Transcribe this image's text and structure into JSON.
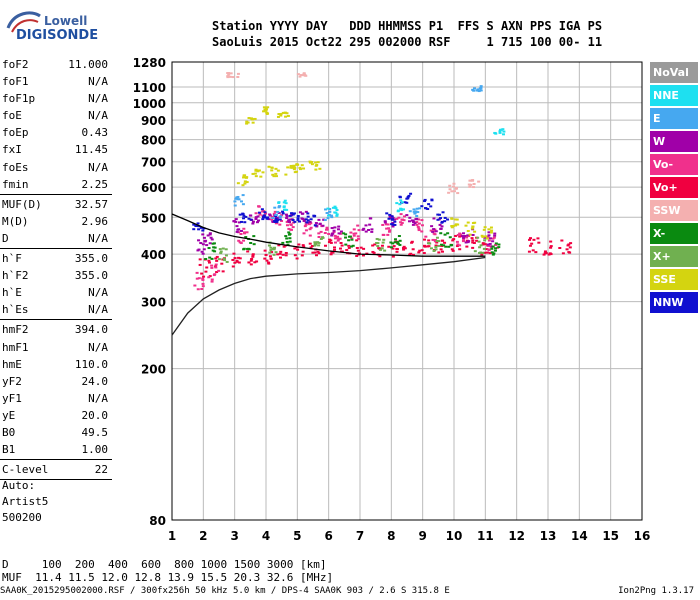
{
  "logo": {
    "line1": "Lowell",
    "line2": "DIGISONDE"
  },
  "header": {
    "line1": "Station YYYY DAY   DDD HHMMSS P1  FFS S AXN PPS IGA PS",
    "line2": "SaoLuis 2015 Oct22 295 002000 RSF     1 715 100 00- 11"
  },
  "params": [
    {
      "name": "foF2",
      "value": "11.000"
    },
    {
      "name": "foF1",
      "value": "N/A"
    },
    {
      "name": "foF1p",
      "value": "N/A"
    },
    {
      "name": "foE",
      "value": "N/A"
    },
    {
      "name": "foEp",
      "value": "0.43"
    },
    {
      "name": "fxI",
      "value": "11.45"
    },
    {
      "name": "foEs",
      "value": "N/A"
    },
    {
      "name": "fmin",
      "value": "2.25"
    },
    {
      "sep": true
    },
    {
      "name": "MUF(D)",
      "value": "32.57"
    },
    {
      "name": "M(D)",
      "value": "2.96"
    },
    {
      "name": "D",
      "value": "N/A"
    },
    {
      "sep": true
    },
    {
      "name": "h`F",
      "value": "355.0"
    },
    {
      "name": "h`F2",
      "value": "355.0"
    },
    {
      "name": "h`E",
      "value": "N/A"
    },
    {
      "name": "h`Es",
      "value": "N/A"
    },
    {
      "sep": true
    },
    {
      "name": "hmF2",
      "value": "394.0"
    },
    {
      "name": "hmF1",
      "value": "N/A"
    },
    {
      "name": "hmE",
      "value": "110.0"
    },
    {
      "name": "yF2",
      "value": "24.0"
    },
    {
      "name": "yF1",
      "value": "N/A"
    },
    {
      "name": "yE",
      "value": "20.0"
    },
    {
      "name": "B0",
      "value": "49.5"
    },
    {
      "name": "B1",
      "value": "1.00"
    },
    {
      "sep": true
    },
    {
      "name": "C-level",
      "value": "22"
    },
    {
      "sep": true
    }
  ],
  "auto": {
    "line1": "Auto:",
    "line2": "Artist5",
    "line3": "500200"
  },
  "legend": [
    {
      "label": "NoVal",
      "color": "#9a9a9a"
    },
    {
      "label": "NNE",
      "color": "#1ee0f0"
    },
    {
      "label": "E",
      "color": "#46a8f0"
    },
    {
      "label": "W",
      "color": "#a000a8"
    },
    {
      "label": "Vo-",
      "color": "#f0308c"
    },
    {
      "label": "Vo+",
      "color": "#f00040"
    },
    {
      "label": "SSW",
      "color": "#f4b0b0"
    },
    {
      "label": "X-",
      "color": "#0a8a10"
    },
    {
      "label": "X+",
      "color": "#70b050"
    },
    {
      "label": "SSE",
      "color": "#d4d410"
    },
    {
      "label": "NNW",
      "color": "#1010d0"
    }
  ],
  "footer": {
    "line1": "D     100  200  400  600  800 1000 1500 3000 [km]",
    "line2": "MUF  11.4 11.5 12.0 12.8 13.9 15.5 20.3 32.6 [MHz]",
    "bottom": "SAA0K_2015295002000.RSF / 300fx256h 50 kHz 5.0 km / DPS-4 SAA0K 903 / 2.6 S 315.8 E",
    "version": "Ion2Png 1.3.17"
  },
  "chart_data": {
    "type": "scatter",
    "xlim": [
      1,
      16
    ],
    "ylim": [
      80,
      1280
    ],
    "x_ticks": [
      1,
      2,
      3,
      4,
      5,
      6,
      7,
      8,
      9,
      10,
      11,
      12,
      13,
      14,
      15,
      16
    ],
    "y_ticks": [
      80,
      200,
      300,
      400,
      500,
      600,
      700,
      800,
      900,
      1000,
      1100,
      1280
    ],
    "grid": true,
    "legend_position": "right",
    "series": [
      {
        "name": "Vo+",
        "color": "#f00040",
        "points": [
          [
            2.0,
            370
          ],
          [
            2.5,
            380
          ],
          [
            3.0,
            390
          ],
          [
            3.5,
            395
          ],
          [
            4.0,
            400
          ],
          [
            4.5,
            405
          ],
          [
            5.0,
            410
          ],
          [
            5.5,
            415
          ],
          [
            6.0,
            420
          ],
          [
            6.5,
            420
          ],
          [
            7.0,
            418
          ],
          [
            7.5,
            415
          ],
          [
            8.0,
            415
          ],
          [
            8.5,
            420
          ],
          [
            9.0,
            420
          ],
          [
            9.5,
            425
          ],
          [
            10.0,
            430
          ],
          [
            10.5,
            430
          ],
          [
            11.0,
            420
          ],
          [
            12.5,
            425
          ],
          [
            13.0,
            420
          ],
          [
            13.5,
            420
          ]
        ]
      },
      {
        "name": "Vo-",
        "color": "#f0308c",
        "points": [
          [
            1.8,
            340
          ],
          [
            2.3,
            360
          ],
          [
            3.2,
            450
          ],
          [
            3.8,
            520
          ],
          [
            4.3,
            500
          ],
          [
            4.8,
            480
          ],
          [
            5.3,
            470
          ],
          [
            5.8,
            460
          ],
          [
            6.3,
            450
          ],
          [
            6.8,
            460
          ],
          [
            7.8,
            470
          ],
          [
            8.3,
            500
          ],
          [
            8.8,
            480
          ],
          [
            9.2,
            450
          ],
          [
            10.2,
            440
          ],
          [
            11.2,
            430
          ]
        ]
      },
      {
        "name": "W",
        "color": "#a000a8",
        "points": [
          [
            1.9,
            420
          ],
          [
            2.1,
            440
          ],
          [
            3.1,
            480
          ],
          [
            3.6,
            490
          ],
          [
            4.2,
            500
          ],
          [
            4.7,
            495
          ],
          [
            5.2,
            500
          ],
          [
            5.7,
            480
          ],
          [
            6.2,
            470
          ],
          [
            7.2,
            480
          ],
          [
            7.9,
            490
          ],
          [
            8.6,
            490
          ],
          [
            9.4,
            480
          ],
          [
            10.4,
            450
          ],
          [
            11.1,
            440
          ]
        ]
      },
      {
        "name": "NNW",
        "color": "#1010d0",
        "points": [
          [
            1.8,
            480
          ],
          [
            3.3,
            500
          ],
          [
            3.9,
            510
          ],
          [
            4.4,
            505
          ],
          [
            4.9,
            498
          ],
          [
            5.4,
            495
          ],
          [
            7.9,
            500
          ],
          [
            8.4,
            560
          ],
          [
            9.1,
            540
          ],
          [
            9.6,
            500
          ]
        ]
      },
      {
        "name": "SSE",
        "color": "#d4d410",
        "points": [
          [
            3.2,
            630
          ],
          [
            3.7,
            660
          ],
          [
            4.2,
            665
          ],
          [
            4.7,
            670
          ],
          [
            5.0,
            680
          ],
          [
            5.5,
            690
          ],
          [
            3.5,
            900
          ],
          [
            4.0,
            960
          ],
          [
            4.5,
            940
          ],
          [
            10.0,
            480
          ],
          [
            10.5,
            470
          ],
          [
            11.0,
            460
          ]
        ]
      },
      {
        "name": "X-",
        "color": "#0a8a10",
        "points": [
          [
            2.2,
            410
          ],
          [
            3.4,
            430
          ],
          [
            4.6,
            440
          ],
          [
            6.6,
            440
          ],
          [
            8.1,
            435
          ],
          [
            9.7,
            440
          ],
          [
            11.3,
            420
          ]
        ]
      },
      {
        "name": "X+",
        "color": "#70b050",
        "points": [
          [
            2.6,
            400
          ],
          [
            4.1,
            420
          ],
          [
            5.6,
            430
          ],
          [
            7.6,
            425
          ],
          [
            9.3,
            430
          ],
          [
            10.8,
            425
          ]
        ]
      },
      {
        "name": "E",
        "color": "#46a8f0",
        "points": [
          [
            3.1,
            560
          ],
          [
            4.3,
            520
          ],
          [
            5.9,
            510
          ],
          [
            8.7,
            520
          ],
          [
            10.7,
            1100
          ]
        ]
      },
      {
        "name": "NNE",
        "color": "#1ee0f0",
        "points": [
          [
            4.5,
            540
          ],
          [
            6.1,
            520
          ],
          [
            8.2,
            540
          ],
          [
            11.4,
            850
          ]
        ]
      },
      {
        "name": "SSW",
        "color": "#f4b0b0",
        "points": [
          [
            2.9,
            1190
          ],
          [
            5.1,
            1190
          ],
          [
            9.9,
            600
          ],
          [
            10.6,
            620
          ]
        ]
      }
    ],
    "traces": [
      {
        "name": "profile",
        "points": [
          [
            1,
            245
          ],
          [
            1.5,
            280
          ],
          [
            2,
            305
          ],
          [
            2.5,
            322
          ],
          [
            3,
            335
          ],
          [
            3.5,
            345
          ],
          [
            4,
            350
          ],
          [
            5,
            355
          ],
          [
            6,
            358
          ],
          [
            7,
            362
          ],
          [
            8,
            368
          ],
          [
            9,
            375
          ],
          [
            10,
            382
          ],
          [
            11,
            392
          ]
        ]
      },
      {
        "name": "trace",
        "points": [
          [
            1,
            510
          ],
          [
            1.5,
            490
          ],
          [
            2,
            470
          ],
          [
            2.5,
            455
          ],
          [
            3,
            445
          ],
          [
            3.5,
            438
          ],
          [
            4,
            430
          ],
          [
            5,
            418
          ],
          [
            6,
            408
          ],
          [
            7,
            400
          ],
          [
            8,
            398
          ],
          [
            9,
            395
          ],
          [
            10,
            395
          ],
          [
            11,
            395
          ]
        ]
      }
    ]
  }
}
